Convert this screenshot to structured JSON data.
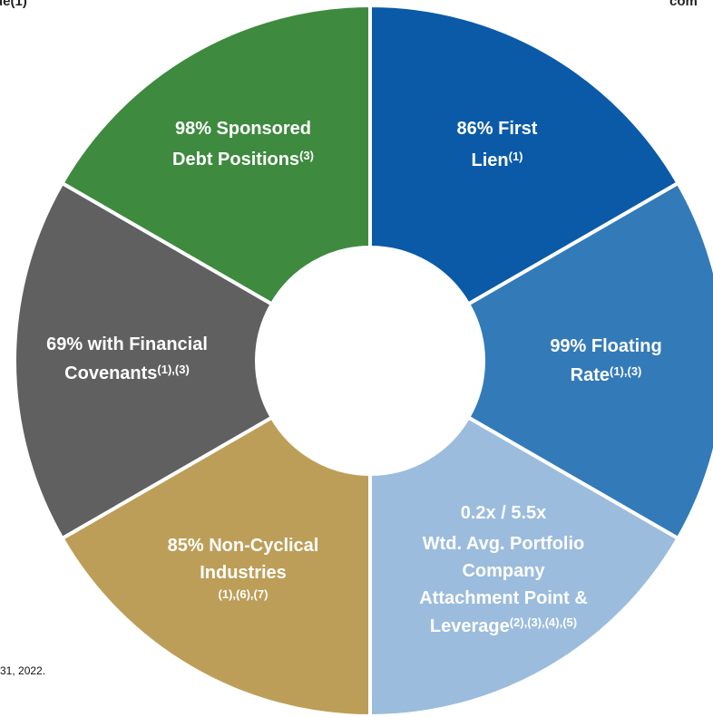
{
  "header": {
    "left_fragment": "ue(1)",
    "right_fragment": "com"
  },
  "footnote_fragment": "31, 2022.",
  "segments": [
    {
      "color": "#0a5aa8",
      "lines": [
        {
          "text": "86% First"
        },
        {
          "text": "Lien",
          "sup": "(1)"
        }
      ]
    },
    {
      "color": "#337ab9",
      "lines": [
        {
          "text": "99% Floating"
        },
        {
          "text": "Rate",
          "sup": "(1),(3)"
        }
      ]
    },
    {
      "color": "#9bbcdd",
      "lines": [
        {
          "text": "0.2x / 5.5x"
        },
        {
          "text": "Wtd. Avg. Portfolio"
        },
        {
          "text": "Company"
        },
        {
          "text": "Attachment Point &"
        },
        {
          "text": "Leverage",
          "sup": "(2),(3),(4),(5)"
        }
      ]
    },
    {
      "color": "#bd9e58",
      "lines": [
        {
          "text": "85% Non-Cyclical"
        },
        {
          "text": "Industries"
        },
        {
          "sup": "(1),(6),(7)"
        }
      ]
    },
    {
      "color": "#606060",
      "lines": [
        {
          "text": "69% with Financial"
        },
        {
          "text": "Covenants",
          "sup": "(1),(3)"
        }
      ]
    },
    {
      "color": "#3e8a3f",
      "lines": [
        {
          "text": "98% Sponsored"
        },
        {
          "text": "Debt Positions",
          "sup": "(3)"
        }
      ]
    }
  ]
}
